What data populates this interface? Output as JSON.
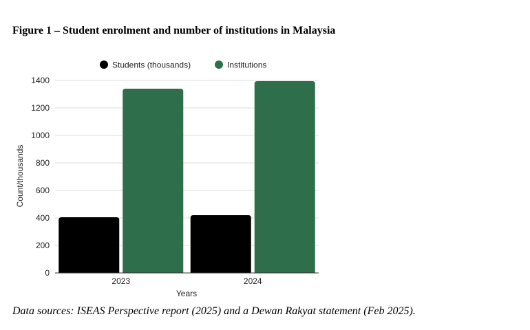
{
  "figure": {
    "title": "Figure 1 – Student enrolment and number of institutions in Malaysia",
    "caption": "Data sources: ISEAS Perspective report (2025) and a Dewan Rakyat statement (Feb 2025)."
  },
  "chart_data": {
    "type": "bar",
    "categories": [
      "2023",
      "2024"
    ],
    "series": [
      {
        "name": "Students (thousands)",
        "values": [
          405,
          420
        ],
        "color": "#000000"
      },
      {
        "name": "Institutions",
        "values": [
          1340,
          1395
        ],
        "color": "#2f6e4a"
      }
    ],
    "xlabel": "Years",
    "ylabel": "Count/thousands",
    "ylim": [
      0,
      1400
    ],
    "yticks": [
      0,
      200,
      400,
      600,
      800,
      1000,
      1200,
      1400
    ],
    "grid": true,
    "legend_position": "top"
  }
}
